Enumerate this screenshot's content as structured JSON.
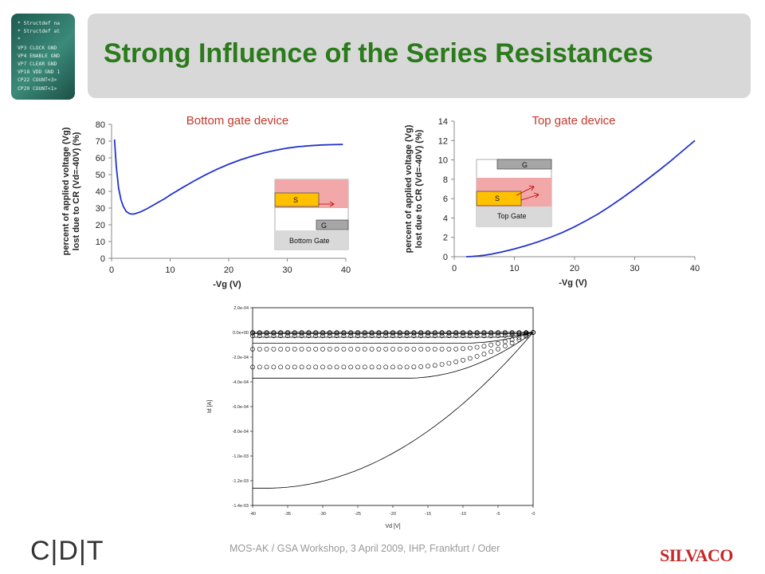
{
  "slide": {
    "title": "Strong Influence of the Series Resistances",
    "footer": "MOS-AK / GSA Workshop, 3 April 2009,  IHP,  Frankfurt / Oder",
    "logo_left": "C|D|T",
    "logo_right": "SILVACO",
    "code_lines": [
      "* Structdef na",
      "* Structdef at",
      "*",
      "VP3 CLOCK GND",
      "VP4 ENABLE GND",
      "VP7 CLEAR GND",
      "VP18 VDD GND 1",
      "CP22 COUNT<3>",
      "CP20 COUNT<1>"
    ],
    "colors": {
      "title": "#2b7a1b",
      "caption": "#c0392b",
      "curve": "#2233cc",
      "brand": "#c62828"
    }
  },
  "chart_data": [
    {
      "type": "line",
      "title": "Bottom gate device",
      "xlabel": "-Vg (V)",
      "ylabel_lines": [
        "percent of applied voltage (Vg)",
        "lost due to CR (Vd=-40V)  (%)"
      ],
      "xlim": [
        0,
        40
      ],
      "ylim": [
        0,
        80
      ],
      "xticks": [
        0,
        10,
        20,
        30,
        40
      ],
      "yticks": [
        0,
        10,
        20,
        30,
        40,
        50,
        60,
        70,
        80
      ],
      "series": [
        {
          "x": [
            0.5,
            0.8,
            1.2,
            1.6,
            2.0,
            2.5,
            3.0,
            3.5,
            4.0,
            5,
            6,
            7,
            8,
            9,
            10,
            12,
            14,
            16,
            18,
            20,
            22,
            24,
            26,
            28,
            30,
            32,
            34,
            36,
            38,
            39.5
          ],
          "y": [
            71,
            55,
            42,
            35,
            31,
            28,
            26.8,
            26.4,
            26.6,
            27.8,
            29.5,
            31.5,
            33.5,
            35.5,
            37.8,
            42,
            46,
            49.8,
            53.2,
            56.2,
            58.8,
            61,
            63,
            64.5,
            65.8,
            66.7,
            67.3,
            67.7,
            67.9,
            68
          ]
        }
      ],
      "inset": {
        "labels": [
          "S",
          "G",
          "Bottom Gate"
        ]
      }
    },
    {
      "type": "line",
      "title": "Top gate device",
      "xlabel": "-Vg (V)",
      "ylabel_lines": [
        "percent of applied voltage (Vg)",
        "lost due to CR (Vd=-40V)  (%)"
      ],
      "xlim": [
        0,
        40
      ],
      "ylim": [
        0,
        14
      ],
      "xticks": [
        0,
        10,
        20,
        30,
        40
      ],
      "yticks": [
        0,
        2,
        4,
        6,
        8,
        10,
        12,
        14
      ],
      "series": [
        {
          "x": [
            2,
            3,
            4,
            5,
            6,
            7,
            8,
            10,
            12,
            14,
            16,
            18,
            20,
            22,
            24,
            26,
            28,
            30,
            32,
            34,
            36,
            38,
            40
          ],
          "y": [
            0,
            0.03,
            0.08,
            0.15,
            0.25,
            0.37,
            0.5,
            0.8,
            1.15,
            1.55,
            2.0,
            2.5,
            3.1,
            3.75,
            4.45,
            5.25,
            6.1,
            7.0,
            7.95,
            8.9,
            9.9,
            10.95,
            12.0
          ]
        }
      ],
      "inset": {
        "labels": [
          "G",
          "S",
          "Top Gate"
        ]
      }
    },
    {
      "type": "line",
      "xlabel": "Vd [V]",
      "ylabel": "Id [A]",
      "xlim": [
        -40,
        0
      ],
      "ylim": [
        -0.0014,
        0.0002
      ],
      "xticks": [
        -40,
        -35,
        -30,
        -25,
        -20,
        -15,
        -10,
        -5,
        0
      ],
      "xtick_labels": [
        "-40",
        "-35",
        "-30",
        "-25",
        "-20",
        "-15",
        "-10",
        "-5",
        "-0"
      ],
      "yticks": [
        0.0002,
        0,
        -0.0002,
        -0.0004,
        -0.0006,
        -0.0008,
        -0.001,
        -0.0012,
        -0.0014
      ],
      "ytick_labels": [
        "2.0e-04",
        "0.0e+00",
        "-2.0e-04",
        "-4.0e-04",
        "-6.0e-04",
        "-8.0e-04",
        "-1.0e-03",
        "-1.2e-03",
        "-1.4e-03"
      ],
      "curves": [
        {
          "style": "solid",
          "sat": 0.0,
          "vsat": 2
        },
        {
          "style": "solid",
          "sat": -9.5e-06,
          "vsat": 3
        },
        {
          "style": "solid",
          "sat": -3.9e-05,
          "vsat": 6
        },
        {
          "style": "solid",
          "sat": -8.7e-05,
          "vsat": 10
        },
        {
          "style": "solid",
          "sat": -0.00037,
          "vsat": 18
        },
        {
          "style": "solid",
          "sat": -0.00126,
          "vsat": 38
        },
        {
          "style": "circles",
          "sat": 0.0,
          "vsat": 2
        },
        {
          "style": "circles",
          "sat": -6e-06,
          "vsat": 3
        },
        {
          "style": "circles",
          "sat": -2.7e-05,
          "vsat": 6
        },
        {
          "style": "circles",
          "sat": -0.000135,
          "vsat": 12
        },
        {
          "style": "circles",
          "sat": -0.00028,
          "vsat": 18
        }
      ]
    }
  ]
}
